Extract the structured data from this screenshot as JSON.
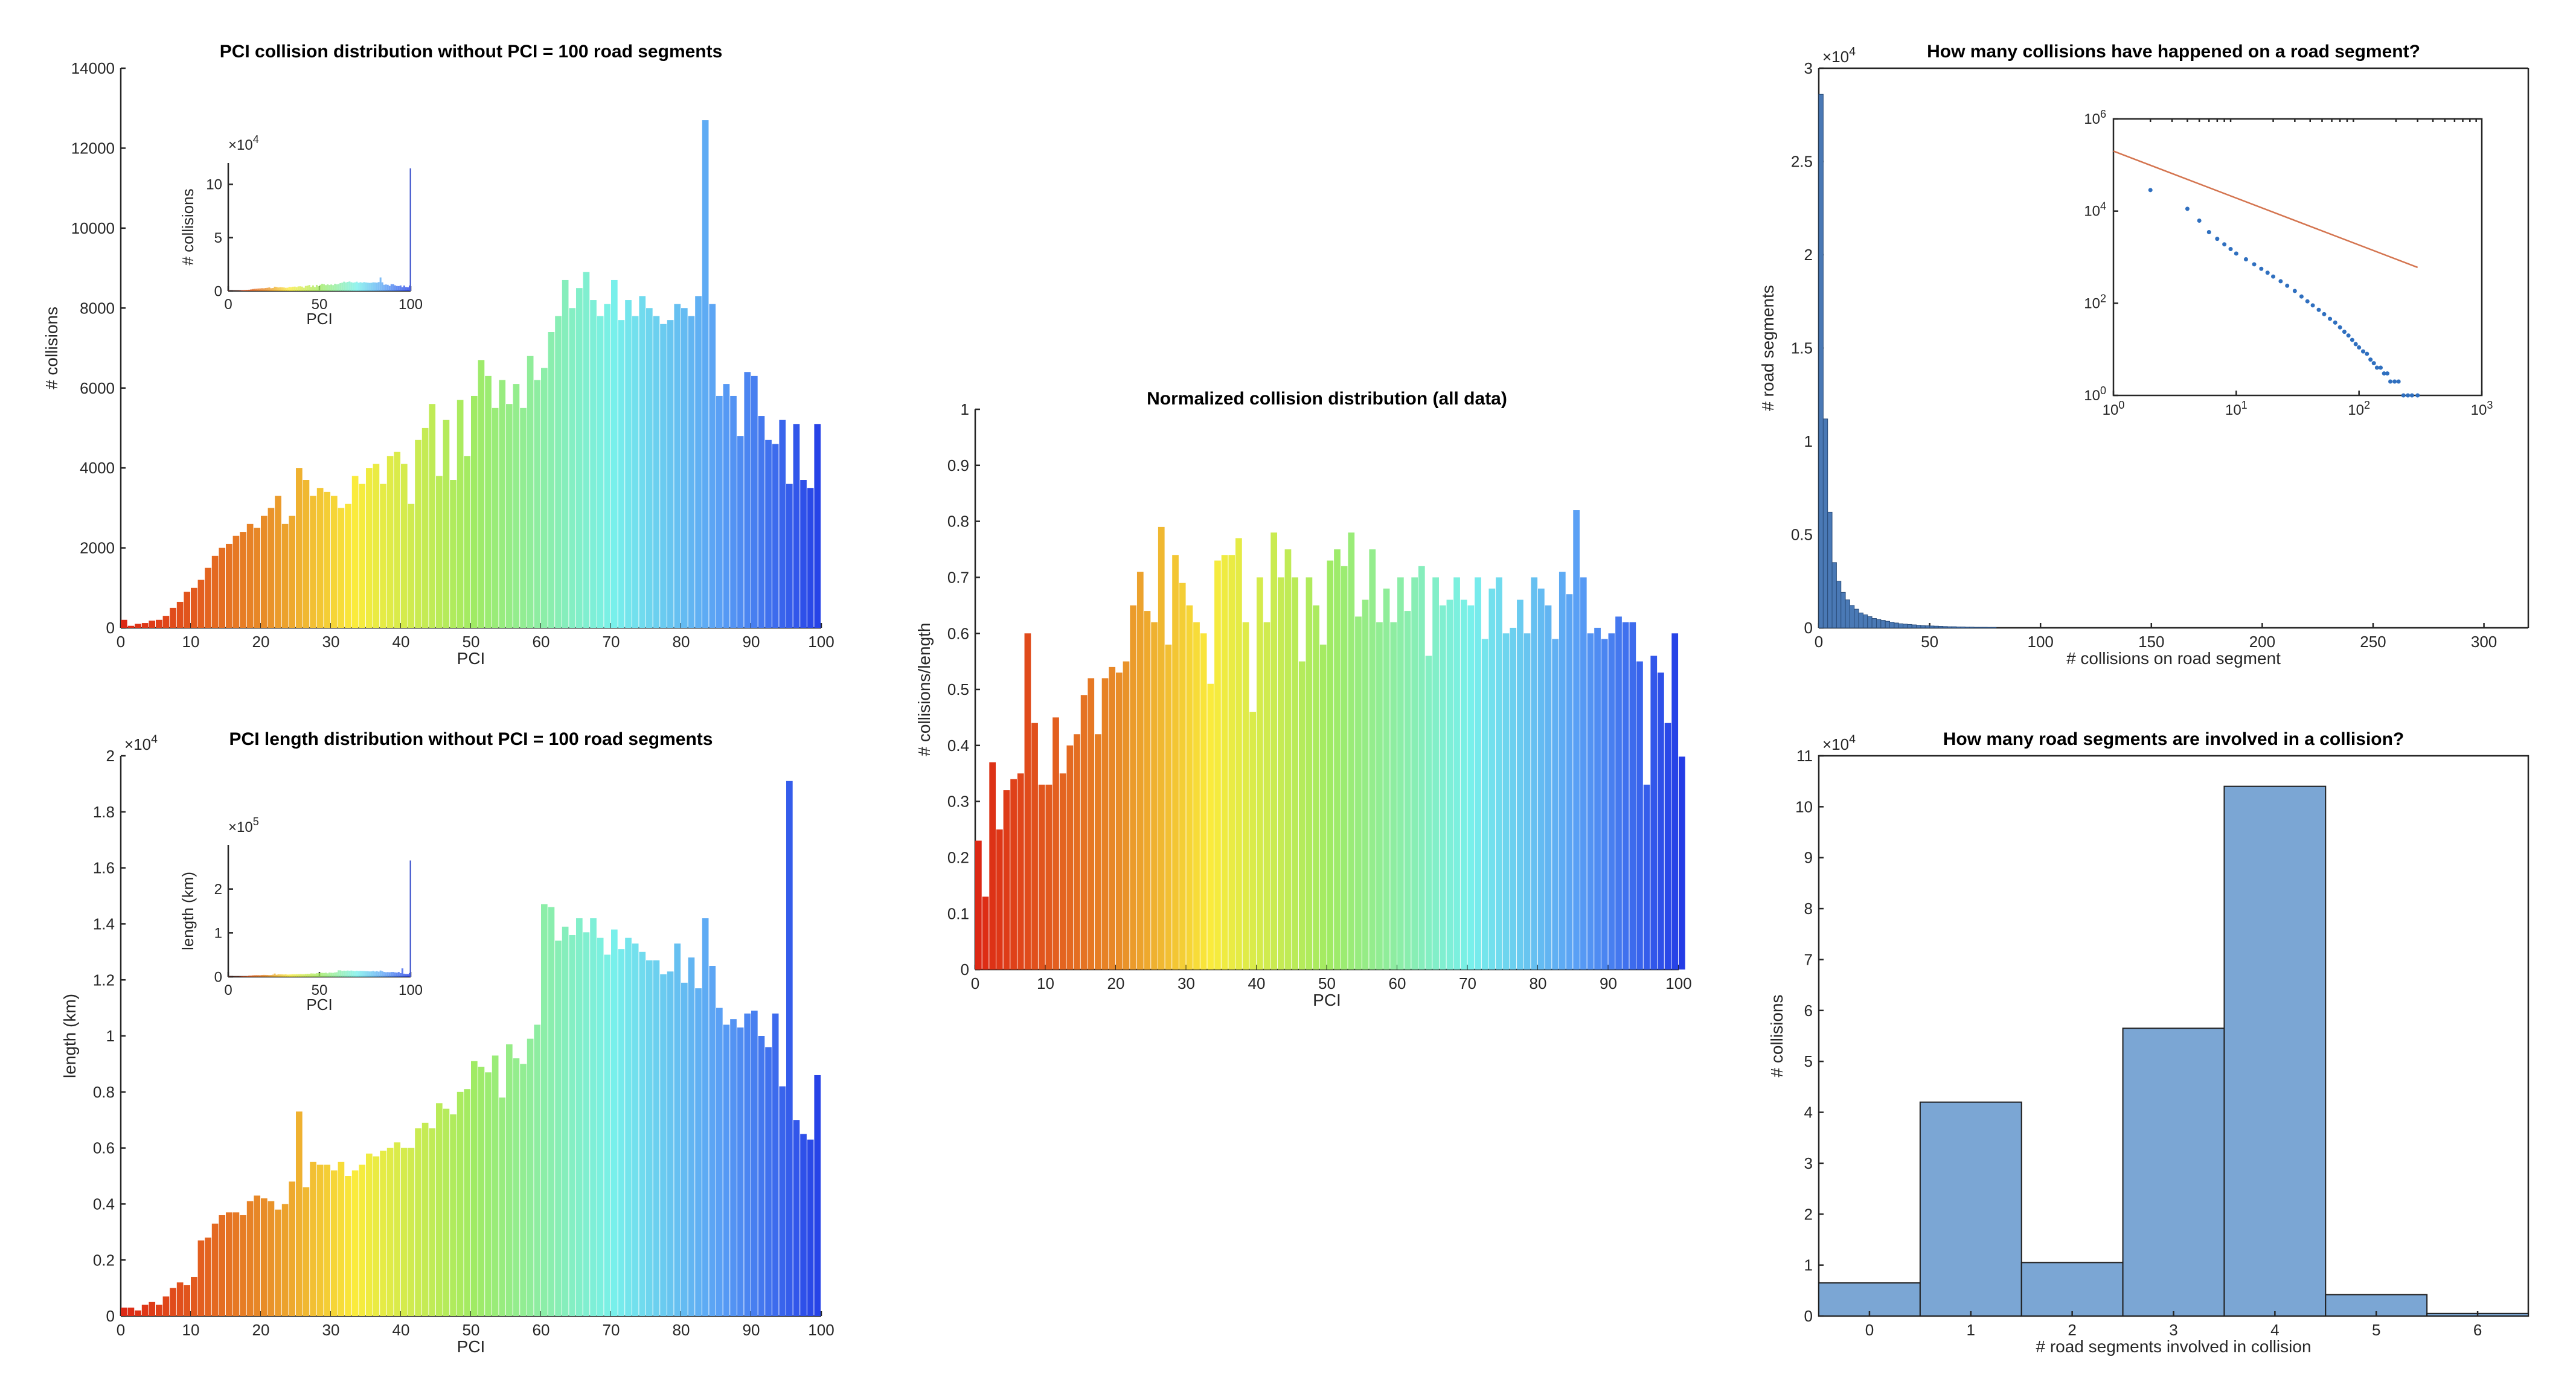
{
  "chart_data": [
    {
      "id": "pci_collision",
      "type": "bar",
      "title": "PCI collision distribution without PCI = 100 road segments",
      "xlabel": "PCI",
      "ylabel": "# collisions",
      "xlim": [
        0,
        100
      ],
      "ylim": [
        0,
        14000
      ],
      "xticks": [
        0,
        10,
        20,
        30,
        40,
        50,
        60,
        70,
        80,
        90,
        100
      ],
      "yticks": [
        0,
        2000,
        4000,
        6000,
        8000,
        10000,
        12000,
        14000
      ],
      "ytick_labels": [
        "0",
        "2000",
        "4000",
        "6000",
        "8000",
        "10000",
        "12000",
        "14000"
      ],
      "colormap": "jet",
      "x": [
        0,
        1,
        2,
        3,
        4,
        5,
        6,
        7,
        8,
        9,
        10,
        11,
        12,
        13,
        14,
        15,
        16,
        17,
        18,
        19,
        20,
        21,
        22,
        23,
        24,
        25,
        26,
        27,
        28,
        29,
        30,
        31,
        32,
        33,
        34,
        35,
        36,
        37,
        38,
        39,
        40,
        41,
        42,
        43,
        44,
        45,
        46,
        47,
        48,
        49,
        50,
        51,
        52,
        53,
        54,
        55,
        56,
        57,
        58,
        59,
        60,
        61,
        62,
        63,
        64,
        65,
        66,
        67,
        68,
        69,
        70,
        71,
        72,
        73,
        74,
        75,
        76,
        77,
        78,
        79,
        80,
        81,
        82,
        83,
        84,
        85,
        86,
        87,
        88,
        89,
        90,
        91,
        92,
        93,
        94,
        95,
        96,
        97,
        98,
        99
      ],
      "values": [
        200,
        50,
        100,
        120,
        180,
        200,
        300,
        500,
        650,
        900,
        1000,
        1200,
        1500,
        1800,
        2000,
        2100,
        2300,
        2400,
        2600,
        2500,
        2800,
        3000,
        3300,
        2600,
        2800,
        4000,
        3700,
        3300,
        3500,
        3400,
        3300,
        3000,
        3100,
        3800,
        3600,
        4000,
        4100,
        3600,
        4300,
        4400,
        4100,
        3100,
        4700,
        5000,
        5600,
        3800,
        5200,
        3700,
        5700,
        4300,
        5800,
        6700,
        6300,
        5500,
        6200,
        5600,
        6100,
        5500,
        6800,
        6200,
        6500,
        7400,
        7800,
        8700,
        8000,
        8500,
        8900,
        8200,
        7800,
        8100,
        8700,
        7700,
        8200,
        7800,
        8300,
        8000,
        7800,
        7600,
        7700,
        8100,
        8000,
        7800,
        8300,
        12700,
        8100,
        5800,
        6100,
        5800,
        4800,
        6400,
        6300,
        5300,
        4700,
        4600,
        5200,
        3600,
        5100,
        3700,
        3500,
        5100
      ]
    },
    {
      "id": "pci_collision_inset",
      "type": "bar",
      "title": "",
      "xlabel": "PCI",
      "ylabel": "# collisions",
      "ylabel_exponent": "×10^4",
      "xlim": [
        0,
        100
      ],
      "ylim": [
        0,
        12
      ],
      "xticks": [
        0,
        50,
        100
      ],
      "yticks": [
        0,
        5,
        10
      ],
      "values_description": "same distribution incl. PCI = 100",
      "spike_at_100": 11.5
    },
    {
      "id": "pci_length",
      "type": "bar",
      "title": "PCI length distribution without PCI = 100 road segments",
      "xlabel": "PCI",
      "ylabel": "length (km)",
      "ylabel_exponent": "×10^4",
      "xlim": [
        0,
        100
      ],
      "ylim": [
        0,
        2
      ],
      "xticks": [
        0,
        10,
        20,
        30,
        40,
        50,
        60,
        70,
        80,
        90,
        100
      ],
      "yticks": [
        0,
        0.2,
        0.4,
        0.6,
        0.8,
        1,
        1.2,
        1.4,
        1.6,
        1.8,
        2
      ],
      "ytick_labels": [
        "0",
        "0.2",
        "0.4",
        "0.6",
        "0.8",
        "1",
        "1.2",
        "1.4",
        "1.6",
        "1.8",
        "2"
      ],
      "colormap": "jet",
      "x": [
        0,
        1,
        2,
        3,
        4,
        5,
        6,
        7,
        8,
        9,
        10,
        11,
        12,
        13,
        14,
        15,
        16,
        17,
        18,
        19,
        20,
        21,
        22,
        23,
        24,
        25,
        26,
        27,
        28,
        29,
        30,
        31,
        32,
        33,
        34,
        35,
        36,
        37,
        38,
        39,
        40,
        41,
        42,
        43,
        44,
        45,
        46,
        47,
        48,
        49,
        50,
        51,
        52,
        53,
        54,
        55,
        56,
        57,
        58,
        59,
        60,
        61,
        62,
        63,
        64,
        65,
        66,
        67,
        68,
        69,
        70,
        71,
        72,
        73,
        74,
        75,
        76,
        77,
        78,
        79,
        80,
        81,
        82,
        83,
        84,
        85,
        86,
        87,
        88,
        89,
        90,
        91,
        92,
        93,
        94,
        95,
        96,
        97,
        98,
        99
      ],
      "values": [
        0.03,
        0.03,
        0.02,
        0.04,
        0.05,
        0.04,
        0.07,
        0.1,
        0.12,
        0.11,
        0.14,
        0.27,
        0.28,
        0.33,
        0.36,
        0.37,
        0.37,
        0.36,
        0.41,
        0.43,
        0.42,
        0.41,
        0.38,
        0.4,
        0.48,
        0.73,
        0.46,
        0.55,
        0.54,
        0.54,
        0.52,
        0.55,
        0.5,
        0.52,
        0.54,
        0.58,
        0.57,
        0.59,
        0.6,
        0.62,
        0.6,
        0.6,
        0.67,
        0.69,
        0.67,
        0.76,
        0.74,
        0.72,
        0.8,
        0.81,
        0.91,
        0.89,
        0.87,
        0.93,
        0.78,
        0.97,
        0.92,
        0.9,
        0.99,
        1.04,
        1.47,
        1.46,
        1.34,
        1.39,
        1.36,
        1.42,
        1.37,
        1.42,
        1.35,
        1.29,
        1.38,
        1.31,
        1.35,
        1.33,
        1.3,
        1.27,
        1.27,
        1.22,
        1.23,
        1.33,
        1.19,
        1.28,
        1.17,
        1.42,
        1.25,
        1.1,
        1.04,
        1.06,
        1.03,
        1.08,
        1.09,
        1.0,
        0.96,
        1.08,
        0.82,
        1.91,
        0.7,
        0.65,
        0.63,
        0.86
      ]
    },
    {
      "id": "pci_length_inset",
      "type": "bar",
      "title": "",
      "xlabel": "PCI",
      "ylabel": "length (km)",
      "ylabel_exponent": "×10^5",
      "xlim": [
        0,
        100
      ],
      "ylim": [
        0,
        3
      ],
      "xticks": [
        0,
        50,
        100
      ],
      "yticks": [
        0,
        1,
        2
      ],
      "spike_at_100": 2.65
    },
    {
      "id": "normalized",
      "type": "bar",
      "title": "Normalized collision distribution (all data)",
      "xlabel": "PCI",
      "ylabel": "# collisions/length",
      "xlim": [
        0,
        100
      ],
      "ylim": [
        0,
        1
      ],
      "xticks": [
        0,
        10,
        20,
        30,
        40,
        50,
        60,
        70,
        80,
        90,
        100
      ],
      "yticks": [
        0,
        0.1,
        0.2,
        0.3,
        0.4,
        0.5,
        0.6,
        0.7,
        0.8,
        0.9,
        1
      ],
      "ytick_labels": [
        "0",
        "0.1",
        "0.2",
        "0.3",
        "0.4",
        "0.5",
        "0.6",
        "0.7",
        "0.8",
        "0.9",
        "1"
      ],
      "colormap": "jet",
      "x": [
        0,
        1,
        2,
        3,
        4,
        5,
        6,
        7,
        8,
        9,
        10,
        11,
        12,
        13,
        14,
        15,
        16,
        17,
        18,
        19,
        20,
        21,
        22,
        23,
        24,
        25,
        26,
        27,
        28,
        29,
        30,
        31,
        32,
        33,
        34,
        35,
        36,
        37,
        38,
        39,
        40,
        41,
        42,
        43,
        44,
        45,
        46,
        47,
        48,
        49,
        50,
        51,
        52,
        53,
        54,
        55,
        56,
        57,
        58,
        59,
        60,
        61,
        62,
        63,
        64,
        65,
        66,
        67,
        68,
        69,
        70,
        71,
        72,
        73,
        74,
        75,
        76,
        77,
        78,
        79,
        80,
        81,
        82,
        83,
        84,
        85,
        86,
        87,
        88,
        89,
        90,
        91,
        92,
        93,
        94,
        95,
        96,
        97,
        98,
        99,
        100
      ],
      "values": [
        0.23,
        0.13,
        0.37,
        0.25,
        0.32,
        0.34,
        0.35,
        0.6,
        0.44,
        0.33,
        0.33,
        0.45,
        0.35,
        0.4,
        0.42,
        0.49,
        0.52,
        0.42,
        0.52,
        0.54,
        0.53,
        0.55,
        0.65,
        0.71,
        0.64,
        0.62,
        0.79,
        0.58,
        0.74,
        0.69,
        0.65,
        0.62,
        0.6,
        0.51,
        0.73,
        0.74,
        0.74,
        0.77,
        0.62,
        0.46,
        0.7,
        0.62,
        0.78,
        0.7,
        0.75,
        0.7,
        0.55,
        0.7,
        0.65,
        0.58,
        0.73,
        0.75,
        0.72,
        0.78,
        0.63,
        0.66,
        0.75,
        0.62,
        0.68,
        0.62,
        0.7,
        0.64,
        0.7,
        0.72,
        0.56,
        0.7,
        0.65,
        0.66,
        0.7,
        0.66,
        0.65,
        0.7,
        0.59,
        0.68,
        0.7,
        0.6,
        0.61,
        0.66,
        0.6,
        0.7,
        0.68,
        0.65,
        0.59,
        0.71,
        0.67,
        0.82,
        0.7,
        0.6,
        0.61,
        0.59,
        0.6,
        0.63,
        0.62,
        0.62,
        0.55,
        0.33,
        0.56,
        0.53,
        0.44,
        0.6,
        0.38
      ]
    },
    {
      "id": "collisions_per_segment",
      "type": "bar",
      "title": "How many collisions have happened on a road segment?",
      "xlabel": "# collisions on road segment",
      "ylabel": "# road segments",
      "ylabel_exponent": "×10^4",
      "xlim": [
        0,
        320
      ],
      "ylim": [
        0,
        3
      ],
      "xticks": [
        0,
        50,
        100,
        150,
        200,
        250,
        300
      ],
      "yticks": [
        0,
        0.5,
        1,
        1.5,
        2,
        2.5,
        3
      ],
      "ytick_labels": [
        "0",
        "0.5",
        "1",
        "1.5",
        "2",
        "2.5",
        "3"
      ],
      "bar_color": "#4a79b5",
      "bin_width": 2,
      "values": [
        2.86,
        1.12,
        0.62,
        0.35,
        0.25,
        0.19,
        0.15,
        0.12,
        0.1,
        0.08,
        0.07,
        0.06,
        0.05,
        0.045,
        0.04,
        0.035,
        0.03,
        0.026,
        0.022,
        0.02,
        0.018,
        0.016,
        0.014,
        0.012,
        0.011,
        0.01,
        0.009,
        0.008,
        0.007,
        0.006,
        0.006,
        0.005,
        0.005,
        0.004,
        0.004,
        0.003,
        0.003,
        0.003,
        0.002,
        0.002
      ]
    },
    {
      "id": "collisions_per_segment_inset",
      "type": "scatter",
      "title": "",
      "xscale": "log",
      "yscale": "log",
      "xlim": [
        1,
        1000
      ],
      "ylim": [
        1,
        1000000
      ],
      "xtick_labels": [
        "10^0",
        "10^1",
        "10^2",
        "10^3"
      ],
      "ytick_labels": [
        "10^0",
        "10^2",
        "10^4",
        "10^6"
      ],
      "series": [
        {
          "type": "scatter",
          "color": "#2f6fbf",
          "x": [
            2,
            4,
            5,
            6,
            7,
            8,
            9,
            10,
            12,
            14,
            16,
            18,
            20,
            23,
            26,
            30,
            34,
            38,
            42,
            47,
            52,
            58,
            64,
            70,
            76,
            82,
            88,
            94,
            100,
            108,
            116,
            124,
            132,
            140,
            150,
            160,
            170,
            180,
            195,
            210,
            230,
            250,
            270,
            300
          ],
          "y": [
            28600,
            11200,
            6200,
            3500,
            2500,
            1900,
            1500,
            1200,
            900,
            700,
            560,
            460,
            380,
            300,
            240,
            185,
            140,
            110,
            90,
            72,
            58,
            46,
            38,
            30,
            24,
            20,
            16,
            13,
            11,
            9,
            8,
            6,
            5,
            4,
            4,
            3,
            3,
            2,
            2,
            2,
            1,
            1,
            1,
            1
          ]
        },
        {
          "type": "line",
          "color": "#d4744f",
          "x": [
            1,
            300
          ],
          "y": [
            200000,
            600
          ]
        }
      ]
    },
    {
      "id": "segments_per_collision",
      "type": "bar",
      "title": "How many road segments are involved in a collision?",
      "xlabel": "# road segments involved in collision",
      "ylabel": "# collisions",
      "ylabel_exponent": "×10^4",
      "categories": [
        "0",
        "1",
        "2",
        "3",
        "4",
        "5",
        "6"
      ],
      "values": [
        0.65,
        4.2,
        1.05,
        5.65,
        10.4,
        0.42,
        0.05
      ],
      "ylim": [
        0,
        11
      ],
      "yticks": [
        0,
        1,
        2,
        3,
        4,
        5,
        6,
        7,
        8,
        9,
        10,
        11
      ],
      "ytick_labels": [
        "0",
        "1",
        "2",
        "3",
        "4",
        "5",
        "6",
        "7",
        "8",
        "9",
        "10",
        "11"
      ],
      "bar_color": "#7ba6d4"
    }
  ]
}
